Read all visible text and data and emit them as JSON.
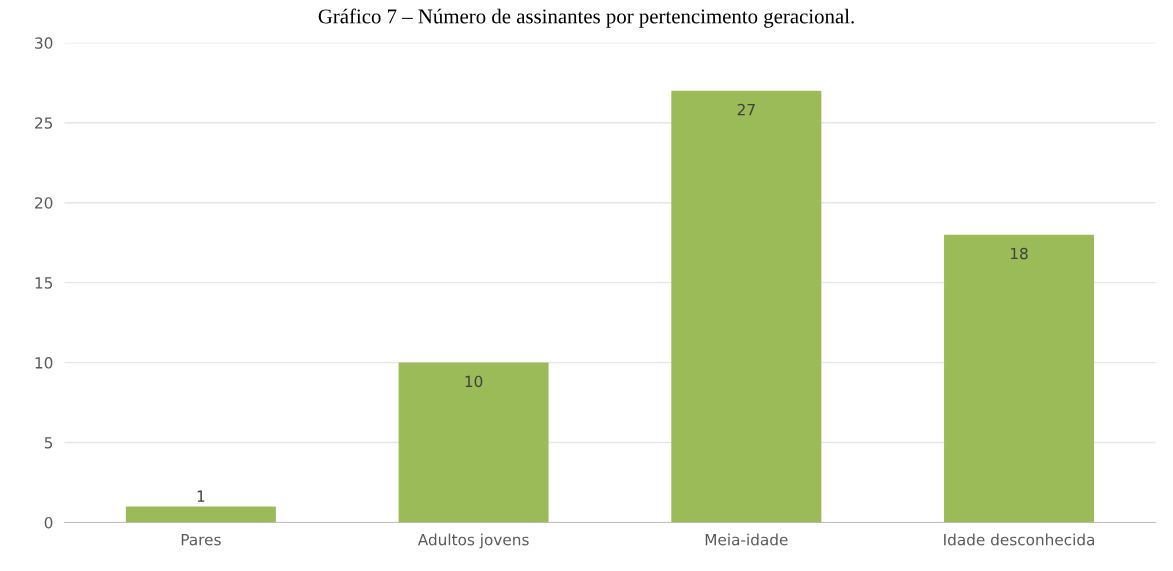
{
  "chart_data": {
    "type": "bar",
    "title": "Gráfico 7 – Número de assinantes por pertencimento geracional.",
    "categories": [
      "Pares",
      "Adultos jovens",
      "Meia-idade",
      "Idade desconhecida"
    ],
    "values": [
      1,
      10,
      27,
      18
    ],
    "color": "#9bbb59",
    "ylim": [
      0,
      30
    ],
    "yticks": [
      0,
      5,
      10,
      15,
      20,
      25,
      30
    ],
    "grid": "y",
    "data_labels": true
  }
}
